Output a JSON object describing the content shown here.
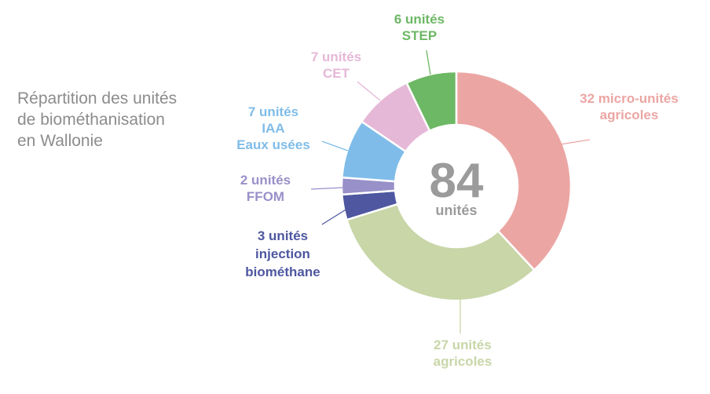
{
  "title_lines": [
    "Répartition des unités",
    "de biométhanisation",
    "en Wallonie"
  ],
  "chart_data": {
    "type": "pie",
    "donut": true,
    "center": {
      "value": "84",
      "label": "unités"
    },
    "slices": [
      {
        "value": 32,
        "color": "#eba6a3",
        "label_lines": [
          "32 micro-unités",
          "agricoles"
        ]
      },
      {
        "value": 27,
        "color": "#c8d6a8",
        "label_lines": [
          "27 unités",
          "agricoles"
        ]
      },
      {
        "value": 3,
        "color": "#4e57a0",
        "label_lines": [
          "3 unités",
          "injection",
          "biométhane"
        ]
      },
      {
        "value": 2,
        "color": "#9890c8",
        "label_lines": [
          "2 unités",
          "FFOM"
        ]
      },
      {
        "value": 7,
        "color": "#7fbce9",
        "label_lines": [
          "7 unités",
          "IAA",
          "Eaux usées"
        ]
      },
      {
        "value": 7,
        "color": "#e6b8d7",
        "label_lines": [
          "7 unités",
          "CET"
        ]
      },
      {
        "value": 6,
        "color": "#6cb864",
        "label_lines": [
          "6 unités",
          "STEP"
        ]
      }
    ]
  }
}
